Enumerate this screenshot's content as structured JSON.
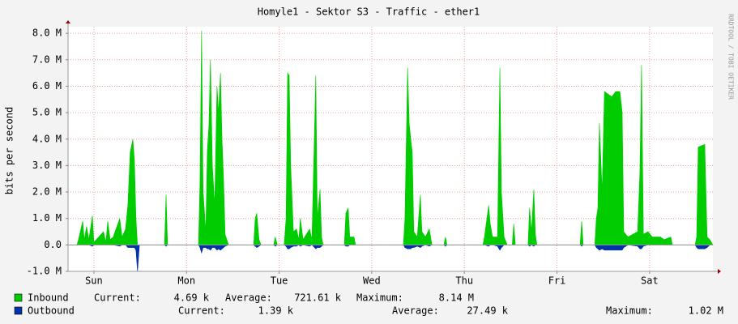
{
  "chart_data": {
    "type": "area",
    "title": "Homyle1 - Sektor S3 - Traffic - ether1",
    "y_label": "bits per second",
    "watermark": "RRDTOOL / TOBI OETIKER",
    "xlim": [
      5.3,
      172.4
    ],
    "xticks": [
      {
        "value": 12,
        "label": "Sun"
      },
      {
        "value": 36,
        "label": "Mon"
      },
      {
        "value": 60,
        "label": "Tue"
      },
      {
        "value": 84,
        "label": "Wed"
      },
      {
        "value": 108,
        "label": "Thu"
      },
      {
        "value": 132,
        "label": "Fri"
      },
      {
        "value": 156,
        "label": "Sat"
      }
    ],
    "ylim": [
      -1,
      8.25
    ],
    "yticks": [
      {
        "value": -1,
        "label": "-1.0 M"
      },
      {
        "value": 0,
        "label": "0.0"
      },
      {
        "value": 1,
        "label": "1.0 M"
      },
      {
        "value": 2,
        "label": "2.0 M"
      },
      {
        "value": 3,
        "label": "3.0 M"
      },
      {
        "value": 4,
        "label": "4.0 M"
      },
      {
        "value": 5,
        "label": "5.0 M"
      },
      {
        "value": 6,
        "label": "6.0 M"
      },
      {
        "value": 7,
        "label": "7.0 M"
      },
      {
        "value": 8,
        "label": "8.0 M"
      }
    ],
    "grid": true,
    "x": [
      5.3,
      7.6,
      8.0,
      9.1,
      9.5,
      10.1,
      10.7,
      11.6,
      12.0,
      14.5,
      15.1,
      15.6,
      16.2,
      17.0,
      18.7,
      19.3,
      20.2,
      20.8,
      21.4,
      22.1,
      22.5,
      22.9,
      23.3,
      23.8,
      30.3,
      30.7,
      31.1,
      39.1,
      39.5,
      39.9,
      40.3,
      41.0,
      41.4,
      41.8,
      42.2,
      42.7,
      43.3,
      43.9,
      44.3,
      44.8,
      45.2,
      45.6,
      46.0,
      46.9,
      53.4,
      53.8,
      54.2,
      54.8,
      55.3,
      58.6,
      59.0,
      59.5,
      61.3,
      61.8,
      62.2,
      62.6,
      63.0,
      63.7,
      64.5,
      65.1,
      65.5,
      66.2,
      67.9,
      68.5,
      69.5,
      69.9,
      70.6,
      71.0,
      71.4,
      76.9,
      77.3,
      77.9,
      78.3,
      79.4,
      79.8,
      92.2,
      92.6,
      93.3,
      93.7,
      94.1,
      94.5,
      94.9,
      95.8,
      96.6,
      97.0,
      97.9,
      98.9,
      99.6,
      102.7,
      103.1,
      103.5,
      112.8,
      113.2,
      114.3,
      114.7,
      115.3,
      116.6,
      117.2,
      117.6,
      118.3,
      119.1,
      120.4,
      120.8,
      121.2,
      124.5,
      124.9,
      125.4,
      126.0,
      126.4,
      126.8,
      138.0,
      138.4,
      138.8,
      141.8,
      142.2,
      142.6,
      143.0,
      143.7,
      144.3,
      146.2,
      147.2,
      148.3,
      148.9,
      149.3,
      150.4,
      152.9,
      153.5,
      153.9,
      154.4,
      155.6,
      156.7,
      158.8,
      159.8,
      161.5,
      161.9,
      167.8,
      168.2,
      168.6,
      170.3,
      170.9,
      171.6,
      172.4
    ],
    "series": [
      {
        "name": "Inbound",
        "color": "#00cc00",
        "legend": [
          {
            "label": "Current:",
            "value": "4.69 k"
          },
          {
            "label": "Average:",
            "value": "721.61 k"
          },
          {
            "label": "Maximum:",
            "value": "8.14 M"
          }
        ],
        "values": [
          0,
          0,
          0.2,
          0.9,
          0.2,
          0.7,
          0.2,
          1.1,
          0.1,
          0.5,
          0.1,
          0.9,
          0.2,
          0.3,
          1.0,
          0.3,
          0.6,
          1.5,
          3.5,
          4.0,
          3.2,
          1.0,
          0,
          0,
          0,
          1.9,
          0,
          0,
          2.4,
          8.1,
          2.0,
          0.5,
          3.6,
          4.5,
          7.0,
          3.0,
          1.5,
          6.0,
          5.0,
          6.5,
          4.0,
          2.5,
          0.4,
          0,
          0,
          1.0,
          1.2,
          0.2,
          0,
          0,
          0.3,
          0,
          0,
          1.0,
          6.5,
          6.4,
          3.0,
          0.5,
          0.6,
          0.2,
          1.0,
          0.2,
          0.6,
          0.2,
          6.4,
          1.0,
          2.1,
          0.3,
          0,
          0,
          1.2,
          1.4,
          0.3,
          0.3,
          0,
          0,
          1.0,
          6.7,
          4.6,
          4.0,
          3.5,
          0.5,
          0.3,
          1.9,
          0.5,
          0.3,
          0.6,
          0,
          0,
          0.3,
          0,
          0,
          0.3,
          1.5,
          0.8,
          0.3,
          0.3,
          6.7,
          2.0,
          0.3,
          0,
          0,
          0.8,
          0,
          0,
          1.4,
          0.5,
          2.1,
          0.4,
          0,
          0,
          0.9,
          0,
          0,
          1.0,
          1.4,
          4.6,
          2.0,
          5.8,
          5.6,
          5.8,
          5.8,
          5.0,
          0.5,
          0.3,
          0.5,
          2.8,
          6.8,
          0.4,
          0.5,
          0.3,
          0.3,
          0.2,
          0.3,
          0,
          0,
          0.3,
          3.7,
          3.8,
          0.3,
          0.2,
          0
        ]
      },
      {
        "name": "Outbound",
        "color": "#0033aa",
        "legend": [
          {
            "label": "Current:",
            "value": "1.39 k"
          },
          {
            "label": "Average:",
            "value": "27.49 k"
          },
          {
            "label": "Maximum:",
            "value": "1.02 M"
          }
        ],
        "values": [
          0,
          0,
          0,
          0,
          0,
          0,
          0,
          -0.05,
          0,
          0,
          0,
          0,
          0,
          0,
          -0.05,
          0,
          0,
          -0.1,
          -0.1,
          -0.1,
          -0.1,
          -0.2,
          -1.0,
          0,
          0,
          -0.05,
          0,
          0,
          -0.1,
          -0.3,
          -0.1,
          -0.1,
          -0.15,
          -0.15,
          -0.2,
          -0.1,
          -0.1,
          -0.2,
          -0.15,
          -0.2,
          -0.15,
          -0.1,
          -0.05,
          0,
          0,
          -0.05,
          -0.1,
          -0.05,
          0,
          0,
          -0.05,
          0,
          0,
          -0.05,
          -0.15,
          -0.15,
          -0.1,
          -0.05,
          -0.05,
          0,
          -0.05,
          0,
          -0.05,
          0,
          -0.15,
          -0.1,
          -0.1,
          -0.05,
          0,
          0,
          -0.05,
          -0.05,
          0,
          0,
          0,
          0,
          -0.1,
          -0.15,
          -0.15,
          -0.15,
          -0.1,
          -0.1,
          -0.05,
          -0.1,
          -0.05,
          0,
          -0.05,
          0,
          0,
          -0.05,
          0,
          0,
          0,
          -0.05,
          0,
          0,
          -0.05,
          -0.2,
          -0.1,
          0,
          0,
          0,
          0,
          0,
          0,
          -0.05,
          0,
          -0.05,
          0,
          0,
          0,
          -0.05,
          0,
          0,
          -0.1,
          -0.15,
          -0.2,
          -0.15,
          -0.2,
          -0.2,
          -0.2,
          -0.2,
          -0.2,
          -0.1,
          0,
          -0.05,
          -0.15,
          -0.15,
          -0.05,
          0,
          0,
          0,
          0,
          0,
          0,
          0,
          -0.1,
          -0.15,
          -0.15,
          -0.1,
          0,
          0
        ]
      }
    ]
  }
}
